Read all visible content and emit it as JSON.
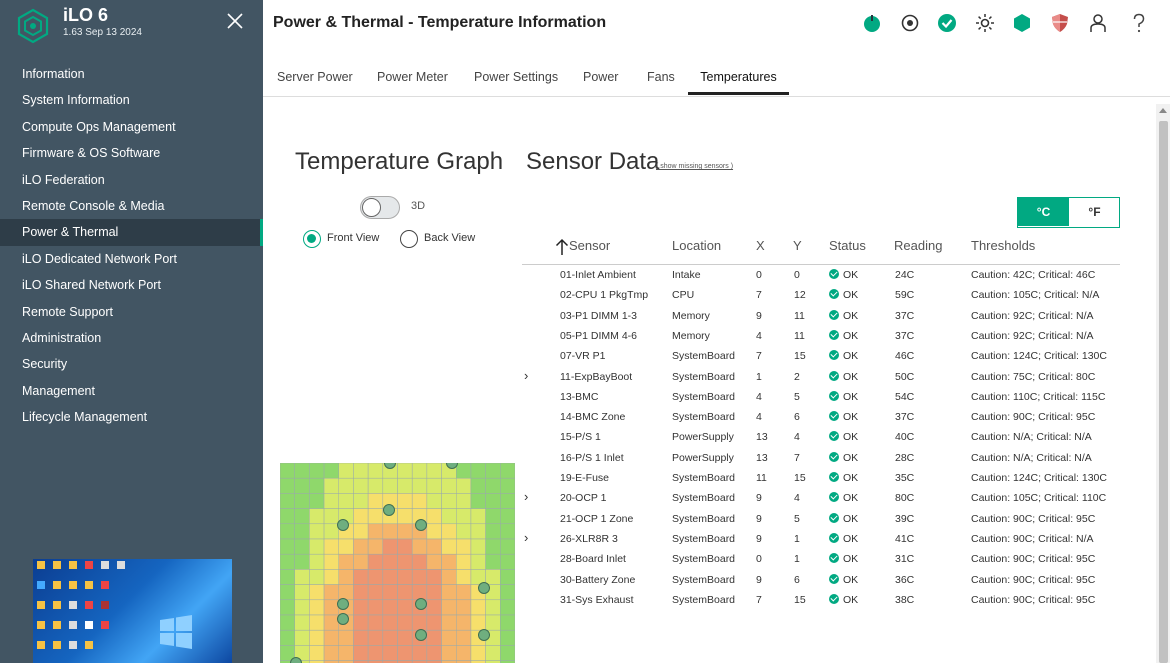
{
  "app": {
    "title": "iLO 6",
    "version": "1.63 Sep 13 2024"
  },
  "sidebar": {
    "items": [
      {
        "label": "Information",
        "active": false
      },
      {
        "label": "System Information",
        "active": false
      },
      {
        "label": "Compute Ops Management",
        "active": false
      },
      {
        "label": "Firmware & OS Software",
        "active": false
      },
      {
        "label": "iLO Federation",
        "active": false
      },
      {
        "label": "Remote Console & Media",
        "active": false
      },
      {
        "label": "Power & Thermal",
        "active": true
      },
      {
        "label": "iLO Dedicated Network Port",
        "active": false
      },
      {
        "label": "iLO Shared Network Port",
        "active": false
      },
      {
        "label": "Remote Support",
        "active": false
      },
      {
        "label": "Administration",
        "active": false
      },
      {
        "label": "Security",
        "active": false
      },
      {
        "label": "Management",
        "active": false
      },
      {
        "label": "Lifecycle Management",
        "active": false
      }
    ]
  },
  "header": {
    "title": "Power & Thermal - Temperature Information",
    "icons": [
      "power-icon",
      "location-icon",
      "health-ok-icon",
      "brightness-icon",
      "hexagon-icon",
      "security-shield-icon",
      "user-icon",
      "help-icon"
    ]
  },
  "tabs": [
    "Server Power",
    "Power Meter",
    "Power Settings",
    "Power",
    "Fans",
    "Temperatures"
  ],
  "active_tab": "Temperatures",
  "graph": {
    "title": "Temperature Graph",
    "toggle_label": "3D",
    "view_front": "Front View",
    "view_back": "Back View",
    "selected_view": "Front View"
  },
  "sensor_data": {
    "title": "Sensor Data",
    "missing_link": "( show missing sensors )",
    "unit_c": "°C",
    "unit_f": "°F",
    "selected_unit": "°C",
    "ok_label": "OK",
    "columns": [
      "Sensor",
      "Location",
      "X",
      "Y",
      "Status",
      "Reading",
      "Thresholds"
    ],
    "rows": [
      {
        "sensor": "01-Inlet Ambient",
        "location": "Intake",
        "x": "0",
        "y": "0",
        "status": "OK",
        "reading": "24C",
        "thresholds": "Caution: 42C; Critical: 46C"
      },
      {
        "sensor": "02-CPU 1 PkgTmp",
        "location": "CPU",
        "x": "7",
        "y": "12",
        "status": "OK",
        "reading": "59C",
        "thresholds": "Caution: 105C; Critical: N/A"
      },
      {
        "sensor": "03-P1 DIMM 1-3",
        "location": "Memory",
        "x": "9",
        "y": "11",
        "status": "OK",
        "reading": "37C",
        "thresholds": "Caution: 92C; Critical: N/A"
      },
      {
        "sensor": "05-P1 DIMM 4-6",
        "location": "Memory",
        "x": "4",
        "y": "11",
        "status": "OK",
        "reading": "37C",
        "thresholds": "Caution: 92C; Critical: N/A"
      },
      {
        "sensor": "07-VR P1",
        "location": "SystemBoard",
        "x": "7",
        "y": "15",
        "status": "OK",
        "reading": "46C",
        "thresholds": "Caution: 124C; Critical: 130C"
      },
      {
        "sensor": "11-ExpBayBoot",
        "location": "SystemBoard",
        "x": "1",
        "y": "2",
        "status": "OK",
        "reading": "50C",
        "thresholds": "Caution: 75C; Critical: 80C"
      },
      {
        "sensor": "13-BMC",
        "location": "SystemBoard",
        "x": "4",
        "y": "5",
        "status": "OK",
        "reading": "54C",
        "thresholds": "Caution: 110C; Critical: 115C"
      },
      {
        "sensor": "14-BMC Zone",
        "location": "SystemBoard",
        "x": "4",
        "y": "6",
        "status": "OK",
        "reading": "37C",
        "thresholds": "Caution: 90C; Critical: 95C"
      },
      {
        "sensor": "15-P/S 1",
        "location": "PowerSupply",
        "x": "13",
        "y": "4",
        "status": "OK",
        "reading": "40C",
        "thresholds": "Caution: N/A; Critical: N/A"
      },
      {
        "sensor": "16-P/S 1 Inlet",
        "location": "PowerSupply",
        "x": "13",
        "y": "7",
        "status": "OK",
        "reading": "28C",
        "thresholds": "Caution: N/A; Critical: N/A"
      },
      {
        "sensor": "19-E-Fuse",
        "location": "SystemBoard",
        "x": "11",
        "y": "15",
        "status": "OK",
        "reading": "35C",
        "thresholds": "Caution: 124C; Critical: 130C"
      },
      {
        "sensor": "20-OCP 1",
        "location": "SystemBoard",
        "x": "9",
        "y": "4",
        "status": "OK",
        "reading": "80C",
        "thresholds": "Caution: 105C; Critical: 110C"
      },
      {
        "sensor": "21-OCP 1 Zone",
        "location": "SystemBoard",
        "x": "9",
        "y": "5",
        "status": "OK",
        "reading": "39C",
        "thresholds": "Caution: 90C; Critical: 95C"
      },
      {
        "sensor": "26-XLR8R 3",
        "location": "SystemBoard",
        "x": "9",
        "y": "1",
        "status": "OK",
        "reading": "41C",
        "thresholds": "Caution: 90C; Critical: N/A"
      },
      {
        "sensor": "28-Board Inlet",
        "location": "SystemBoard",
        "x": "0",
        "y": "1",
        "status": "OK",
        "reading": "31C",
        "thresholds": "Caution: 90C; Critical: 95C"
      },
      {
        "sensor": "30-Battery Zone",
        "location": "SystemBoard",
        "x": "9",
        "y": "6",
        "status": "OK",
        "reading": "36C",
        "thresholds": "Caution: 90C; Critical: 95C"
      },
      {
        "sensor": "31-Sys Exhaust",
        "location": "SystemBoard",
        "x": "7",
        "y": "15",
        "status": "OK",
        "reading": "38C",
        "thresholds": "Caution: 90C; Critical: 95C"
      }
    ]
  },
  "colors": {
    "accent": "#01a982",
    "sidebar": "#425563",
    "sidebar_active": "#2e3d48"
  }
}
